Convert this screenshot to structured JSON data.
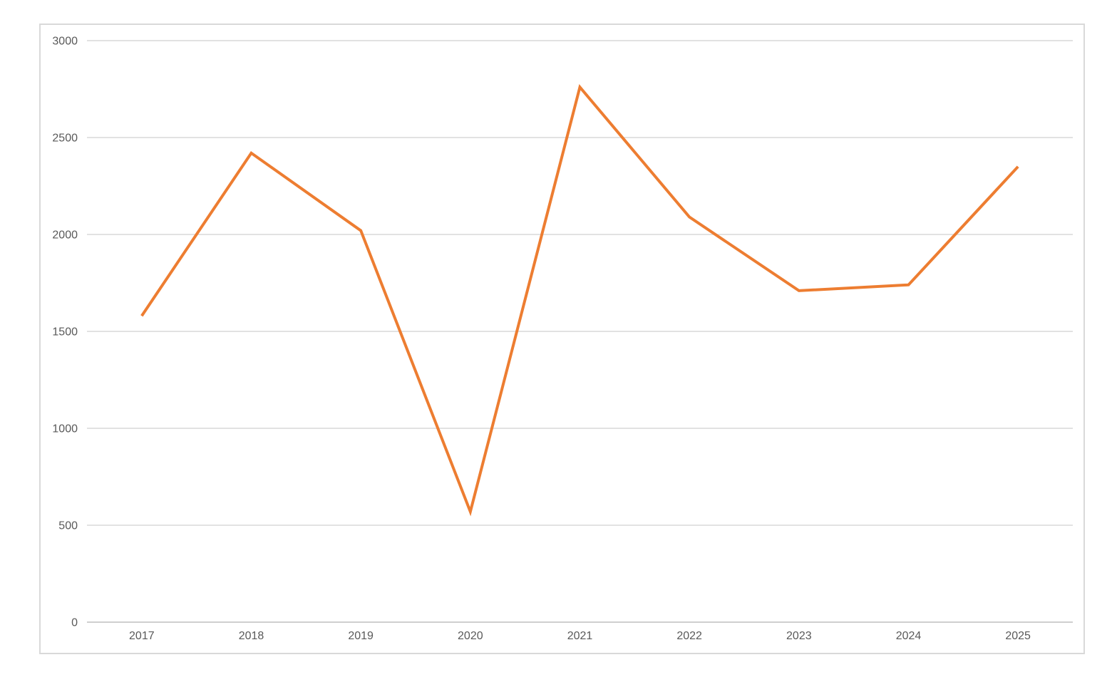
{
  "chart_data": {
    "type": "line",
    "title": "",
    "categories": [
      "2017",
      "2018",
      "2019",
      "2020",
      "2021",
      "2022",
      "2023",
      "2024",
      "2025"
    ],
    "series": [
      {
        "values": [
          1580,
          2420,
          2020,
          570,
          2760,
          2090,
          1710,
          1740,
          2350
        ],
        "color": "#ED7D31"
      }
    ],
    "ylim": [
      0,
      3000
    ],
    "yticks": [
      0,
      500,
      1000,
      1500,
      2000,
      2500,
      3000
    ],
    "grid": true,
    "legend": false,
    "markers": false,
    "colors": {
      "line": "#ED7D31",
      "gridline": "#D9D9D9",
      "axis_line": "#BFBFBF",
      "tick_label": "#595959",
      "chart_border": "#D9D9D9",
      "background": "#FFFFFF"
    }
  }
}
